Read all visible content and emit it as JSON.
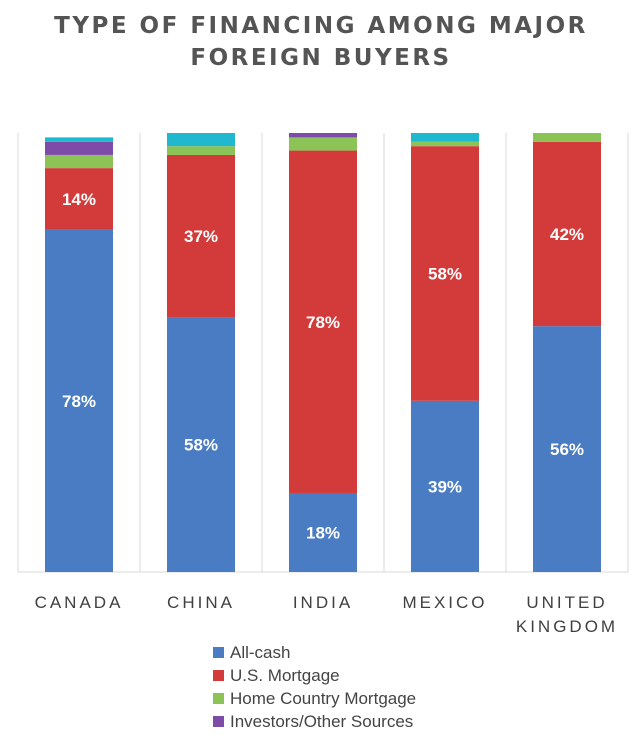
{
  "chart_data": {
    "type": "bar",
    "stacked": true,
    "title": "TYPE OF FINANCING AMONG MAJOR FOREIGN BUYERS",
    "title_lines": [
      "TYPE OF FINANCING AMONG MAJOR",
      "FOREIGN BUYERS"
    ],
    "categories": [
      "CANADA",
      "CHINA",
      "INDIA",
      "MEXICO",
      "UNITED KINGDOM"
    ],
    "category_lines": [
      [
        "CANADA"
      ],
      [
        "CHINA"
      ],
      [
        "INDIA"
      ],
      [
        "MEXICO"
      ],
      [
        "UNITED",
        "KINGDOM"
      ]
    ],
    "ylim": [
      0,
      100
    ],
    "grid": false,
    "legend_position": "bottom",
    "series": [
      {
        "name": "All-cash",
        "color": "#4a7cc4",
        "values": [
          78,
          58,
          18,
          39,
          56
        ],
        "labels": [
          "78%",
          "58%",
          "18%",
          "39%",
          "56%"
        ]
      },
      {
        "name": "U.S. Mortgage",
        "color": "#d33b3b",
        "values": [
          14,
          37,
          78,
          58,
          42
        ],
        "labels": [
          "14%",
          "37%",
          "78%",
          "58%",
          "42%"
        ]
      },
      {
        "name": "Home Country Mortgage",
        "color": "#8cc356",
        "values": [
          3,
          2,
          3,
          1,
          2
        ],
        "labels": [
          "",
          "",
          "",
          "",
          ""
        ]
      },
      {
        "name": "Investors/Other Sources",
        "color": "#7e4ba6",
        "values": [
          3,
          0,
          1,
          0,
          0
        ],
        "labels": [
          "",
          "",
          "",
          "",
          ""
        ]
      },
      {
        "name": "",
        "color": "#1fb8cf",
        "values": [
          1,
          3,
          0,
          2,
          0
        ],
        "labels": [
          "",
          "",
          "",
          "",
          ""
        ]
      }
    ],
    "legend_entries": [
      "All-cash",
      "U.S. Mortgage",
      "Home Country Mortgage",
      "Investors/Other Sources"
    ]
  }
}
